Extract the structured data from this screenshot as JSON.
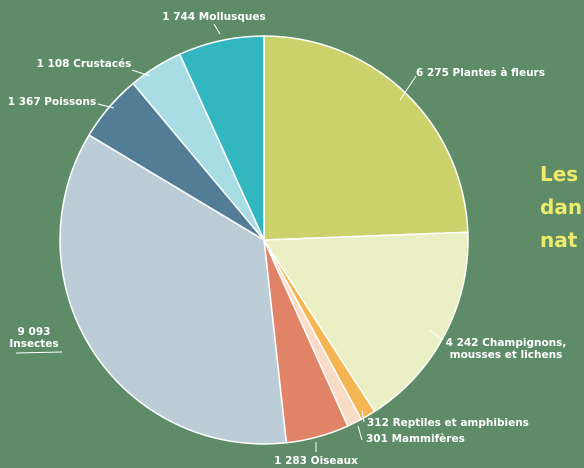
{
  "chart_data": {
    "type": "pie",
    "title_lines": [
      "Les",
      "dan",
      "nat"
    ],
    "start_angle_deg": 0,
    "direction": "clockwise",
    "slices": [
      {
        "label_lines": [
          "6 275 Plantes à fleurs"
        ],
        "value": 6275,
        "color": "#cbd26c"
      },
      {
        "label_lines": [
          "4 242 Champignons,",
          "mousses et lichens"
        ],
        "value": 4242,
        "color": "#eaf0c4"
      },
      {
        "label_lines": [
          "312 Reptiles et amphibiens"
        ],
        "value": 312,
        "color": "#f5b552"
      },
      {
        "label_lines": [
          "301 Mammifères"
        ],
        "value": 301,
        "color": "#f9dcc6"
      },
      {
        "label_lines": [
          "1 283 Oiseaux"
        ],
        "value": 1283,
        "color": "#e08366"
      },
      {
        "label_lines": [
          "9 093",
          "Insectes"
        ],
        "value": 9093,
        "color": "#bccdd7"
      },
      {
        "label_lines": [
          "1 367 Poissons"
        ],
        "value": 1367,
        "color": "#537d96"
      },
      {
        "label_lines": [
          "1 108 Crustacés"
        ],
        "value": 1108,
        "color": "#a9dde5"
      },
      {
        "label_lines": [
          "1 744 Mollusques"
        ],
        "value": 1744,
        "color": "#32b6c0"
      }
    ]
  }
}
